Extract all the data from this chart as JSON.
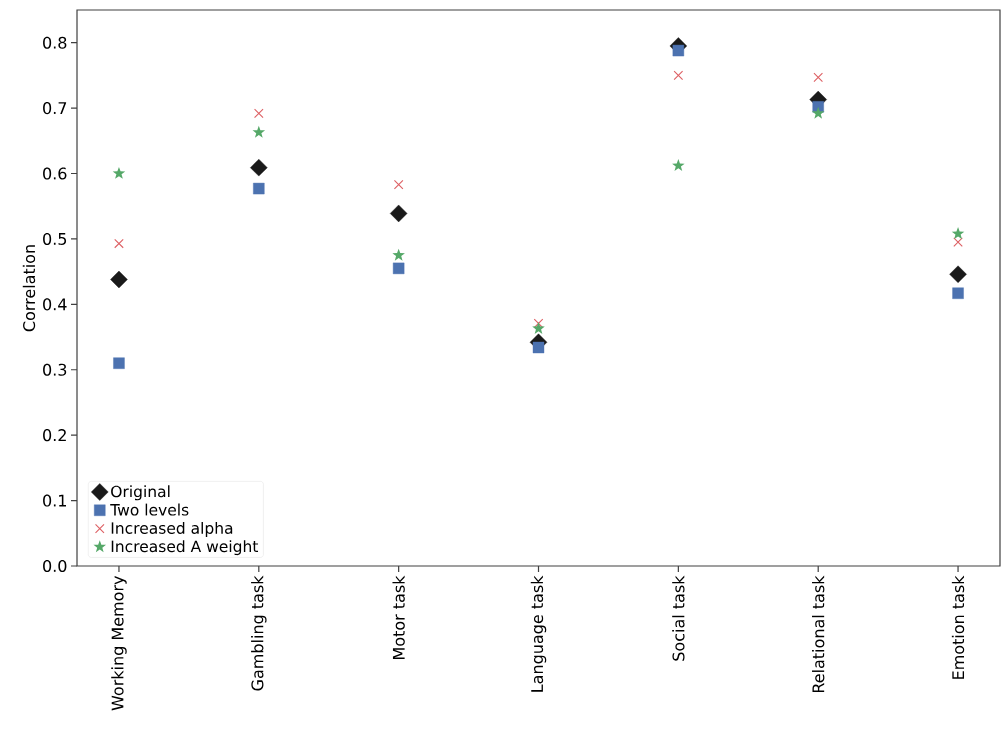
{
  "chart_data": {
    "type": "scatter",
    "ylabel": "Correlation",
    "categories": [
      "Working Memory",
      "Gambling task",
      "Motor task",
      "Language task",
      "Social task",
      "Relational task",
      "Emotion task"
    ],
    "ylim": [
      0,
      0.85
    ],
    "yticks": [
      {
        "value": 0,
        "label": "0.0"
      },
      0.1,
      0.2,
      0.3,
      0.4,
      0.5,
      0.6,
      0.7,
      0.8
    ],
    "legend": "bottom left",
    "grid": false,
    "series": [
      {
        "name": "Original",
        "color": "#1a1a1a",
        "marker": "diamond",
        "values": [
          0.438,
          0.609,
          0.539,
          0.342,
          0.795,
          0.713,
          0.446
        ]
      },
      {
        "name": "Two levels",
        "color": "#4c72b0",
        "marker": "square",
        "values": [
          0.31,
          0.577,
          0.455,
          0.334,
          0.788,
          0.702,
          0.417
        ]
      },
      {
        "name": "Increased alpha",
        "color": "#dd5f63",
        "marker": "cross",
        "values": [
          0.493,
          0.692,
          0.583,
          0.371,
          0.75,
          0.747,
          0.495
        ]
      },
      {
        "name": "Increased A weight",
        "color": "#55a868",
        "marker": "star",
        "values": [
          0.6,
          0.663,
          0.475,
          0.363,
          0.612,
          0.692,
          0.508
        ]
      }
    ]
  }
}
